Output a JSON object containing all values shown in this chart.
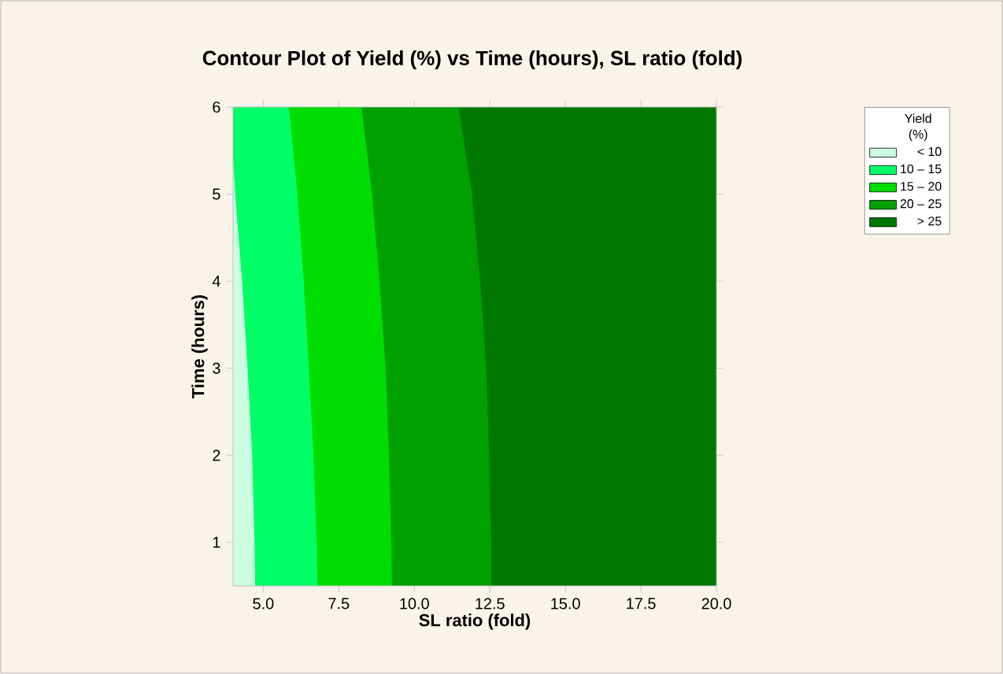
{
  "chart_data": {
    "type": "area",
    "orientation": "horizontal",
    "title": "Contour Plot of Yield (%) vs Time (hours), SL ratio (fold)",
    "xlabel": "SL ratio (fold)",
    "ylabel": "Time (hours)",
    "legend_title": "Yield (%)",
    "legend": "right",
    "xlim": [
      4,
      20
    ],
    "ylim": [
      0.5,
      6
    ],
    "xticks": [
      {
        "value": 5,
        "label": "5.0"
      },
      {
        "value": 7.5,
        "label": "7.5"
      },
      {
        "value": 10,
        "label": "10.0"
      },
      {
        "value": 12.5,
        "label": "12.5"
      },
      {
        "value": 15,
        "label": "15.0"
      },
      {
        "value": 17.5,
        "label": "17.5"
      },
      {
        "value": 20,
        "label": "20.0"
      }
    ],
    "yticks": [
      1,
      2,
      3,
      4,
      5,
      6
    ],
    "series": [
      {
        "name": "< 10",
        "color": "#ccfde0",
        "x": [
          0.5,
          1,
          2,
          3,
          4,
          5,
          5.4
        ],
        "values": [
          4.73,
          4.71,
          4.63,
          4.48,
          4.3,
          4.07,
          4.0
        ]
      },
      {
        "name": "10 – 15",
        "color": "#00ff66",
        "x": [
          0.5,
          1,
          2,
          3,
          4,
          5,
          6
        ],
        "values": [
          6.79,
          6.77,
          6.66,
          6.51,
          6.34,
          6.13,
          5.85
        ]
      },
      {
        "name": "15 – 20",
        "color": "#00dd00",
        "x": [
          0.5,
          1,
          2,
          3,
          4,
          5,
          6
        ],
        "values": [
          9.26,
          9.24,
          9.16,
          9.05,
          8.85,
          8.6,
          8.25
        ]
      },
      {
        "name": "20 – 25",
        "color": "#00a000",
        "x": [
          0.5,
          1,
          2,
          3,
          4,
          5,
          6
        ],
        "values": [
          12.55,
          12.54,
          12.48,
          12.38,
          12.18,
          11.91,
          11.47
        ]
      },
      {
        "name": "> 25",
        "color": "#007800"
      }
    ]
  }
}
